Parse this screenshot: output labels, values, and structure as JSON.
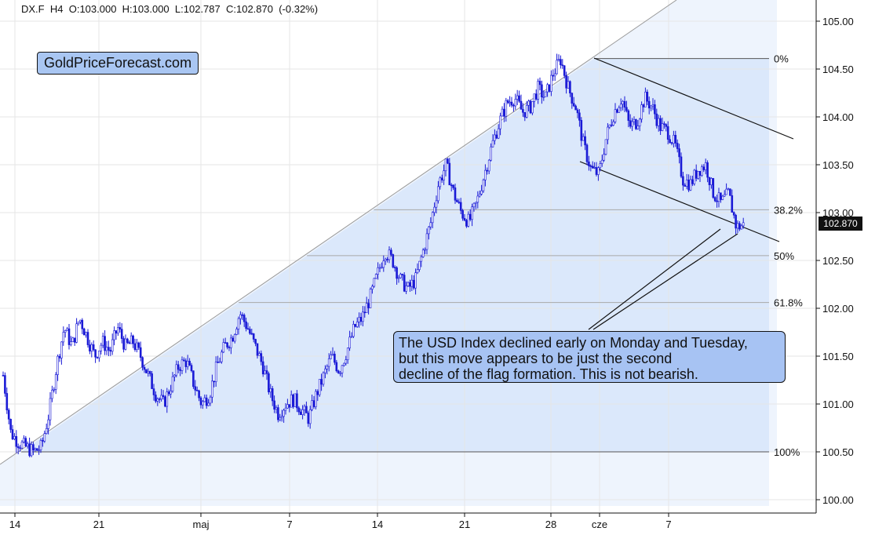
{
  "header": {
    "symbol": "DX.F",
    "timeframe": "H4",
    "open": "O:103.000",
    "high": "H:103.000",
    "low": "L:102.787",
    "close": "C:102.870",
    "change": "(-0.32%)"
  },
  "brand": "GoldPriceForecast.com",
  "annotation": {
    "lines": [
      "The USD Index declined early on Monday and Tuesday,",
      "but this move appears to be just the second",
      "decline of the flag formation. This is not bearish."
    ]
  },
  "last_price_label": "102.870",
  "colors": {
    "candle": "#1a1ad6",
    "fib_fill": "#dbe8fb",
    "annotation_bg": "#a7c3f3",
    "brand_bg": "#a9c6f2"
  },
  "chart_data": {
    "type": "candlestick",
    "title": "",
    "xlabel": "",
    "ylabel": "",
    "ylim": [
      99.95,
      105.2
    ],
    "y_ticks": [
      "100.00",
      "100.50",
      "101.00",
      "101.50",
      "102.00",
      "102.50",
      "103.00",
      "103.50",
      "104.00",
      "104.50",
      "105.00"
    ],
    "x_ticks": [
      "14",
      "21",
      "maj",
      "7",
      "14",
      "21",
      "28",
      "cze",
      "7"
    ],
    "grid": true,
    "fibonacci": [
      {
        "label": "0%",
        "value": 104.61
      },
      {
        "label": "38.2%",
        "value": 103.03
      },
      {
        "label": "50%",
        "value": 102.55
      },
      {
        "label": "61.8%",
        "value": 102.06
      },
      {
        "label": "100%",
        "value": 100.5
      }
    ],
    "price_path": [
      [
        0,
        101.3
      ],
      [
        4,
        100.7
      ],
      [
        8,
        100.6
      ],
      [
        12,
        100.55
      ],
      [
        16,
        100.5
      ],
      [
        20,
        100.55
      ],
      [
        24,
        100.9
      ],
      [
        28,
        101.4
      ],
      [
        32,
        101.8
      ],
      [
        36,
        101.6
      ],
      [
        40,
        101.9
      ],
      [
        44,
        101.7
      ],
      [
        48,
        101.5
      ],
      [
        52,
        101.65
      ],
      [
        56,
        101.55
      ],
      [
        60,
        101.8
      ],
      [
        64,
        101.6
      ],
      [
        68,
        101.65
      ],
      [
        72,
        101.5
      ],
      [
        76,
        101.3
      ],
      [
        80,
        101.1
      ],
      [
        84,
        101.0
      ],
      [
        88,
        101.2
      ],
      [
        92,
        101.4
      ],
      [
        96,
        101.45
      ],
      [
        100,
        101.2
      ],
      [
        104,
        101.0
      ],
      [
        108,
        101.1
      ],
      [
        112,
        101.4
      ],
      [
        116,
        101.6
      ],
      [
        120,
        101.7
      ],
      [
        124,
        101.95
      ],
      [
        128,
        101.8
      ],
      [
        132,
        101.6
      ],
      [
        136,
        101.4
      ],
      [
        140,
        101.1
      ],
      [
        144,
        100.9
      ],
      [
        148,
        101.0
      ],
      [
        152,
        101.05
      ],
      [
        156,
        100.95
      ],
      [
        160,
        100.85
      ],
      [
        164,
        101.1
      ],
      [
        168,
        101.3
      ],
      [
        172,
        101.5
      ],
      [
        176,
        101.35
      ],
      [
        180,
        101.55
      ],
      [
        184,
        101.8
      ],
      [
        188,
        101.9
      ],
      [
        192,
        102.1
      ],
      [
        196,
        102.35
      ],
      [
        200,
        102.6
      ],
      [
        204,
        102.5
      ],
      [
        208,
        102.3
      ],
      [
        212,
        102.2
      ],
      [
        216,
        102.3
      ],
      [
        220,
        102.6
      ],
      [
        224,
        102.9
      ],
      [
        228,
        103.3
      ],
      [
        232,
        103.5
      ],
      [
        236,
        103.2
      ],
      [
        240,
        103.0
      ],
      [
        244,
        102.9
      ],
      [
        248,
        103.1
      ],
      [
        252,
        103.4
      ],
      [
        256,
        103.7
      ],
      [
        260,
        103.95
      ],
      [
        264,
        104.15
      ],
      [
        268,
        104.2
      ],
      [
        272,
        104.05
      ],
      [
        276,
        104.1
      ],
      [
        280,
        104.3
      ],
      [
        284,
        104.2
      ],
      [
        288,
        104.45
      ],
      [
        292,
        104.6
      ],
      [
        296,
        104.3
      ],
      [
        300,
        104.1
      ],
      [
        304,
        103.7
      ],
      [
        308,
        103.45
      ],
      [
        312,
        103.4
      ],
      [
        316,
        103.8
      ],
      [
        320,
        104.05
      ],
      [
        324,
        104.2
      ],
      [
        328,
        103.9
      ],
      [
        332,
        103.95
      ],
      [
        336,
        104.2
      ],
      [
        340,
        104.1
      ],
      [
        344,
        103.9
      ],
      [
        348,
        103.85
      ],
      [
        352,
        103.7
      ],
      [
        356,
        103.35
      ],
      [
        360,
        103.3
      ],
      [
        364,
        103.45
      ],
      [
        368,
        103.5
      ],
      [
        372,
        103.2
      ],
      [
        376,
        103.1
      ],
      [
        380,
        103.2
      ],
      [
        384,
        102.85
      ],
      [
        388,
        102.87
      ]
    ],
    "last_close": 102.87
  }
}
